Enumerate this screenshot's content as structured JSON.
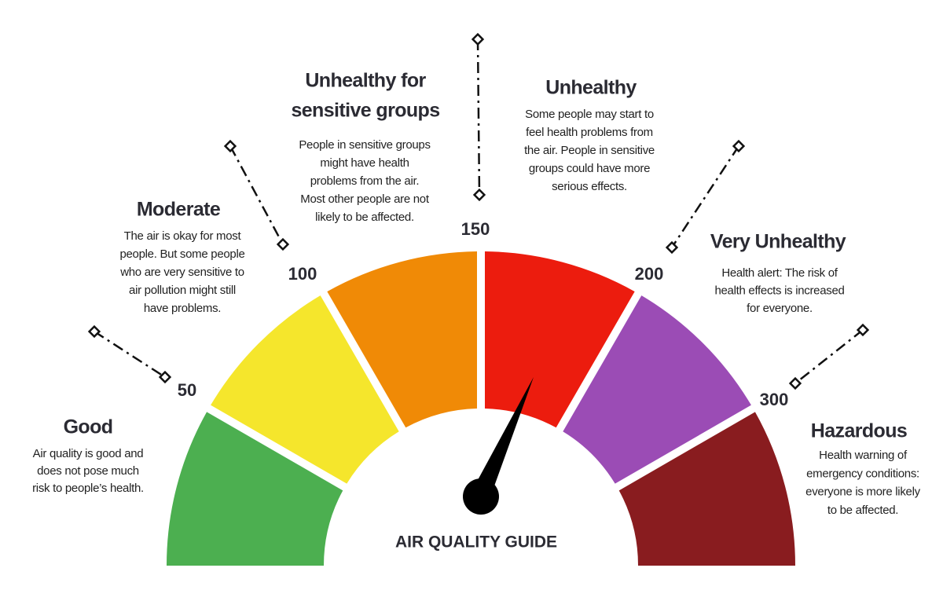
{
  "title": "AIR QUALITY GUIDE",
  "levels": [
    {
      "name": [
        "Good"
      ],
      "description": [
        "Air quality is good and",
        "does not pose much",
        "risk to people’s health."
      ],
      "color": "#4caf50"
    },
    {
      "name": [
        "Moderate"
      ],
      "description": [
        "The air is okay for most",
        "people. But some people",
        "who are very sensitive to",
        "air pollution might still",
        "have problems."
      ],
      "color": "#f5e62c"
    },
    {
      "name": [
        "Unhealthy for",
        "sensitive groups"
      ],
      "description": [
        "People in sensitive groups",
        "might have health",
        "problems from the air.",
        "Most other people are not",
        "likely to be affected."
      ],
      "color": "#f08a06"
    },
    {
      "name": [
        "Unhealthy"
      ],
      "description": [
        "Some people may start to",
        "feel health problems from",
        "the air. People in sensitive",
        "groups could have more",
        "serious effects."
      ],
      "color": "#ec1c0e"
    },
    {
      "name": [
        "Very Unhealthy"
      ],
      "description": [
        "Health alert: The risk of",
        "health effects is increased",
        "for everyone."
      ],
      "color": "#9b4cb5"
    },
    {
      "name": [
        "Hazardous"
      ],
      "description": [
        "Health warning of",
        "emergency conditions:",
        "everyone is more likely",
        "to be affected."
      ],
      "color": "#891c1f"
    }
  ],
  "thresholds": [
    "50",
    "100",
    "150",
    "200",
    "300"
  ]
}
